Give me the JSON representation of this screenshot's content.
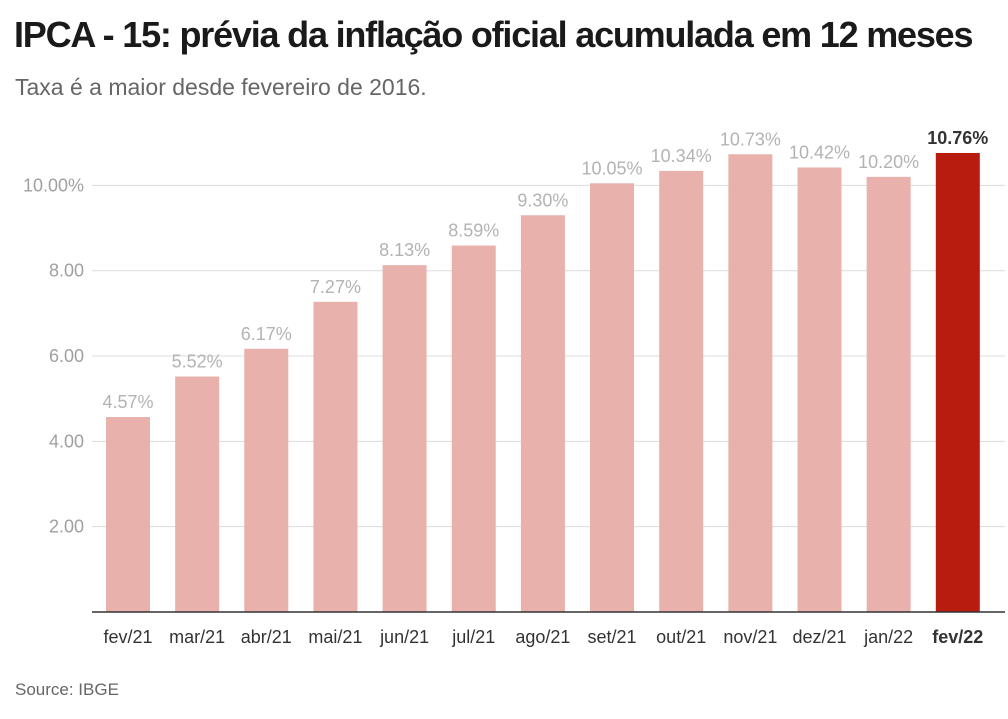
{
  "header": {
    "title": "IPCA - 15: prévia da inflação oficial acumulada em 12 meses",
    "subtitle": "Taxa é a maior desde fevereiro de 2016."
  },
  "footer": {
    "source": "Source: IBGE"
  },
  "colors": {
    "bar": "#e8b1ab",
    "highlight": "#b81c0f"
  },
  "chart_data": {
    "type": "bar",
    "categories": [
      "fev/21",
      "mar/21",
      "abr/21",
      "mai/21",
      "jun/21",
      "jul/21",
      "ago/21",
      "set/21",
      "out/21",
      "nov/21",
      "dez/21",
      "jan/22",
      "fev/22"
    ],
    "values": [
      4.57,
      5.52,
      6.17,
      7.27,
      8.13,
      8.59,
      9.3,
      10.05,
      10.34,
      10.73,
      10.42,
      10.2,
      10.76
    ],
    "value_labels": [
      "4.57%",
      "5.52%",
      "6.17%",
      "7.27%",
      "8.13%",
      "8.59%",
      "9.30%",
      "10.05%",
      "10.34%",
      "10.73%",
      "10.42%",
      "10.20%",
      "10.76%"
    ],
    "highlight_index": 12,
    "y_ticks": [
      2,
      4,
      6,
      8,
      10
    ],
    "y_tick_labels": [
      "2.00",
      "4.00",
      "6.00",
      "8.00",
      "10.00%"
    ],
    "ylim": [
      0,
      10.76
    ],
    "grid": true,
    "legend": "none",
    "title": "IPCA - 15: prévia da inflação oficial acumulada em 12 meses",
    "xlabel": "",
    "ylabel": ""
  }
}
